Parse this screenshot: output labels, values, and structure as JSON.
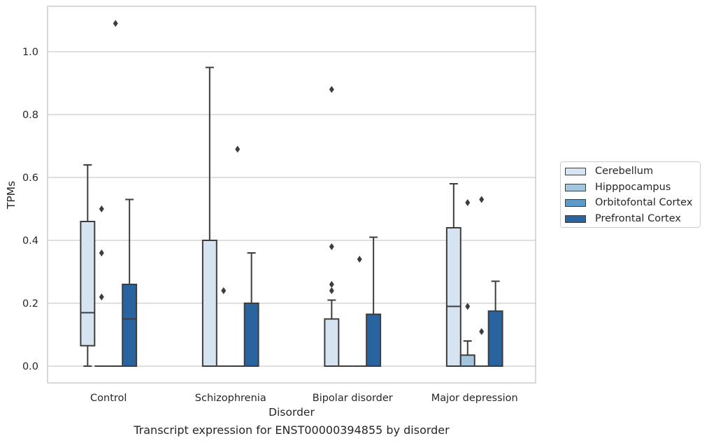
{
  "caption": "Transcript expression for ENST00000394855 by disorder",
  "chart_data": {
    "type": "box",
    "xlabel": "Disorder",
    "ylabel": "TPMs",
    "ylim": [
      -0.05,
      1.14
    ],
    "yticks": [
      "0.0",
      "0.2",
      "0.4",
      "0.6",
      "0.8",
      "1.0"
    ],
    "grid": "horizontal",
    "legend_position": "right",
    "categories": [
      "Control",
      "Schizophrenia",
      "Bipolar disorder",
      "Major depression"
    ],
    "series": [
      {
        "name": "Cerebellum",
        "color": "#d6e4f1",
        "boxes": [
          {
            "q1": 0.065,
            "median": 0.17,
            "q3": 0.46,
            "whisker_low": 0.0,
            "whisker_high": 0.64,
            "outliers": []
          },
          {
            "q1": 0.0,
            "median": 0.0,
            "q3": 0.4,
            "whisker_low": 0.0,
            "whisker_high": 0.95,
            "outliers": []
          },
          {
            "q1": 0.0,
            "median": 0.0,
            "q3": 0.15,
            "whisker_low": 0.0,
            "whisker_high": 0.21,
            "outliers": [
              0.24,
              0.26,
              0.38,
              0.88
            ]
          },
          {
            "q1": 0.0,
            "median": 0.19,
            "q3": 0.44,
            "whisker_low": 0.0,
            "whisker_high": 0.58,
            "outliers": []
          }
        ]
      },
      {
        "name": "Hipppocampus",
        "color": "#a4c5de",
        "boxes": [
          {
            "q1": 0.0,
            "median": 0.0,
            "q3": 0.0,
            "whisker_low": 0.0,
            "whisker_high": 0.0,
            "outliers": [
              0.22,
              0.36,
              0.5
            ]
          },
          {
            "q1": 0.0,
            "median": 0.0,
            "q3": 0.0,
            "whisker_low": 0.0,
            "whisker_high": 0.0,
            "outliers": [
              0.24
            ]
          },
          {
            "q1": 0.0,
            "median": 0.0,
            "q3": 0.0,
            "whisker_low": 0.0,
            "whisker_high": 0.0,
            "outliers": []
          },
          {
            "q1": 0.0,
            "median": 0.0,
            "q3": 0.035,
            "whisker_low": 0.0,
            "whisker_high": 0.08,
            "outliers": [
              0.19,
              0.52
            ]
          }
        ]
      },
      {
        "name": "Orbitofontal Cortex",
        "color": "#5b9ac9",
        "boxes": [
          {
            "q1": 0.0,
            "median": 0.0,
            "q3": 0.0,
            "whisker_low": 0.0,
            "whisker_high": 0.0,
            "outliers": [
              1.09
            ]
          },
          {
            "q1": 0.0,
            "median": 0.0,
            "q3": 0.0,
            "whisker_low": 0.0,
            "whisker_high": 0.0,
            "outliers": [
              0.69
            ]
          },
          {
            "q1": 0.0,
            "median": 0.0,
            "q3": 0.0,
            "whisker_low": 0.0,
            "whisker_high": 0.0,
            "outliers": [
              0.34
            ]
          },
          {
            "q1": 0.0,
            "median": 0.0,
            "q3": 0.0,
            "whisker_low": 0.0,
            "whisker_high": 0.0,
            "outliers": [
              0.11,
              0.53
            ]
          }
        ]
      },
      {
        "name": "Prefrontal Cortex",
        "color": "#2a64a0",
        "boxes": [
          {
            "q1": 0.0,
            "median": 0.15,
            "q3": 0.26,
            "whisker_low": 0.0,
            "whisker_high": 0.53,
            "outliers": []
          },
          {
            "q1": 0.0,
            "median": 0.0,
            "q3": 0.2,
            "whisker_low": 0.0,
            "whisker_high": 0.36,
            "outliers": []
          },
          {
            "q1": 0.0,
            "median": 0.0,
            "q3": 0.165,
            "whisker_low": 0.0,
            "whisker_high": 0.41,
            "outliers": []
          },
          {
            "q1": 0.0,
            "median": 0.0,
            "q3": 0.175,
            "whisker_low": 0.0,
            "whisker_high": 0.27,
            "outliers": []
          }
        ]
      }
    ]
  }
}
